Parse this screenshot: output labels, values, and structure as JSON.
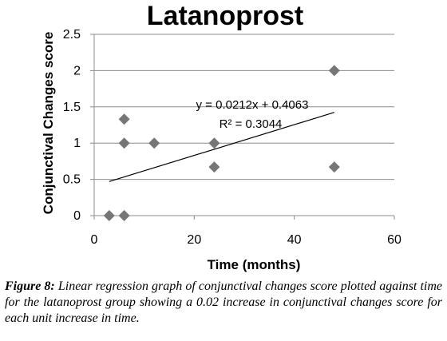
{
  "chart_data": {
    "type": "scatter",
    "title": "Latanoprost",
    "xlabel": "Time (months)",
    "ylabel": "Conjunctival Changes score",
    "xlim": [
      0,
      60
    ],
    "ylim": [
      0,
      2.5
    ],
    "x_ticks": [
      "0",
      "20",
      "40",
      "60"
    ],
    "y_ticks": [
      "0",
      "0.5",
      "1",
      "1.5",
      "2",
      "2.5"
    ],
    "grid": "horizontal",
    "marker_color": "#767676",
    "trendline_color": "#000000",
    "points": [
      {
        "x": 3,
        "y": 0
      },
      {
        "x": 6,
        "y": 0
      },
      {
        "x": 6,
        "y": 1
      },
      {
        "x": 6,
        "y": 1.33
      },
      {
        "x": 12,
        "y": 1
      },
      {
        "x": 24,
        "y": 1
      },
      {
        "x": 24,
        "y": 0.67
      },
      {
        "x": 48,
        "y": 2
      },
      {
        "x": 48,
        "y": 0.67
      }
    ],
    "trendline": {
      "slope": 0.0212,
      "intercept": 0.4063,
      "x_range": [
        3,
        48
      ]
    },
    "equation": "y = 0.0212x + 0.4063",
    "r_squared": "R² = 0.3044"
  },
  "caption": {
    "label": "Figure 8:",
    "text": " Linear regression graph of conjunctival changes score plotted against time for the latanoprost group showing a 0.02 increase in conjunctival changes score for each unit increase in time."
  }
}
